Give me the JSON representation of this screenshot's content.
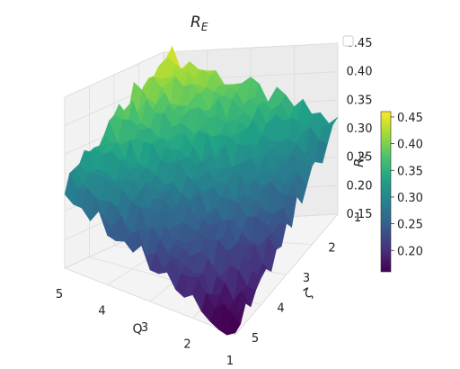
{
  "chart_data": {
    "type": "surface3d",
    "title": "R_E",
    "title_main": "R",
    "title_sub": "E",
    "colormap": "viridis",
    "colormap_stops": [
      "#440154",
      "#46327e",
      "#365c8d",
      "#277f8e",
      "#1fa187",
      "#4ac16d",
      "#a0da39",
      "#fde725"
    ],
    "x_axis": {
      "label": "Q",
      "ticks": [
        "5",
        "4",
        "3",
        "2",
        "1"
      ],
      "range": [
        1,
        5
      ]
    },
    "y_axis": {
      "label": "ζ",
      "ticks": [
        "1",
        "2",
        "3",
        "4",
        "5"
      ],
      "range": [
        1,
        5
      ]
    },
    "z_axis": {
      "label": "R_E",
      "label_main": "R",
      "label_sub": "E",
      "ticks": [
        "0.15",
        "0.20",
        "0.25",
        "0.30",
        "0.35",
        "0.40",
        "0.45"
      ],
      "range": [
        0.15,
        0.45
      ]
    },
    "surface_model": {
      "description": "approx R_E over (Q, ζ) grid; highest at Q=5, ζ=1, lowest at Q=1, ζ=5",
      "z_at_Q5_zeta1": 0.45,
      "z_at_Q1_zeta1": 0.31,
      "z_at_Q5_zeta5": 0.29,
      "z_at_Q1_zeta5": 0.15,
      "noise_amplitude": 0.02,
      "grid_n": 20
    },
    "colorbar": {
      "ticks": [
        "0.20",
        "0.25",
        "0.30",
        "0.35",
        "0.40",
        "0.45"
      ],
      "range": [
        0.16,
        0.46
      ]
    },
    "legend": {
      "placement": "top-right",
      "entries": []
    }
  }
}
